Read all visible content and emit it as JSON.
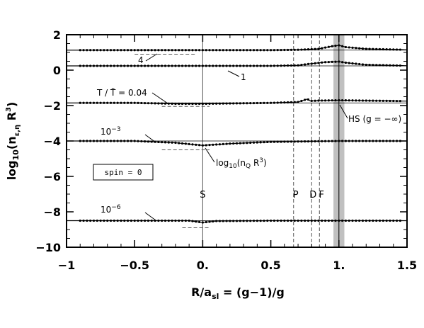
{
  "chart_data": {
    "type": "scatter",
    "title": "",
    "xlabel": "R/a_sl = (g−1)/g",
    "ylabel": "log10(n_{ε,η} R^3)",
    "xlim": [
      -1,
      1.5
    ],
    "ylim": [
      -10,
      2
    ],
    "x_ticks": [
      -1,
      -0.5,
      0,
      0.5,
      1,
      1.5
    ],
    "x_tick_labels": [
      "−1",
      "−0.5",
      "0.",
      "0.5",
      "1.",
      "1.5"
    ],
    "y_ticks": [
      2,
      0,
      -2,
      -4,
      -6,
      -8,
      -10
    ],
    "y_tick_labels": [
      "2",
      "0",
      "−2",
      "−4",
      "−6",
      "−8",
      "−10"
    ],
    "grid": false,
    "series": [
      {
        "name": "4",
        "baseline": 1.13,
        "points": [
          [
            -1.0,
            1.13
          ],
          [
            -0.5,
            1.13
          ],
          [
            0.0,
            1.13
          ],
          [
            0.5,
            1.13
          ],
          [
            0.7,
            1.15
          ],
          [
            0.85,
            1.2
          ],
          [
            0.95,
            1.35
          ],
          [
            1.0,
            1.4
          ],
          [
            1.05,
            1.3
          ],
          [
            1.2,
            1.2
          ],
          [
            1.5,
            1.15
          ]
        ]
      },
      {
        "name": "1",
        "baseline": 0.24,
        "points": [
          [
            -1.0,
            0.24
          ],
          [
            -0.5,
            0.24
          ],
          [
            0.0,
            0.24
          ],
          [
            0.5,
            0.24
          ],
          [
            0.7,
            0.27
          ],
          [
            0.78,
            0.35
          ],
          [
            0.9,
            0.45
          ],
          [
            1.0,
            0.48
          ],
          [
            1.05,
            0.42
          ],
          [
            1.2,
            0.3
          ],
          [
            1.5,
            0.25
          ]
        ]
      },
      {
        "name": "T/T̃ = 0.04",
        "baseline": -1.85,
        "points": [
          [
            -1.0,
            -1.85
          ],
          [
            -0.5,
            -1.85
          ],
          [
            -0.2,
            -1.9
          ],
          [
            0.0,
            -1.9
          ],
          [
            0.2,
            -1.88
          ],
          [
            0.5,
            -1.85
          ],
          [
            0.7,
            -1.8
          ],
          [
            0.74,
            -1.7
          ],
          [
            0.77,
            -1.63
          ],
          [
            0.79,
            -1.74
          ],
          [
            0.85,
            -1.72
          ],
          [
            1.0,
            -1.7
          ],
          [
            1.2,
            -1.72
          ],
          [
            1.5,
            -1.75
          ]
        ]
      },
      {
        "name": "10⁻³",
        "baseline": -4.0,
        "points": [
          [
            -1.0,
            -4.0
          ],
          [
            -0.5,
            -4.0
          ],
          [
            -0.2,
            -4.1
          ],
          [
            0.0,
            -4.25
          ],
          [
            0.2,
            -4.15
          ],
          [
            0.5,
            -4.05
          ],
          [
            0.8,
            -4.02
          ],
          [
            1.0,
            -4.0
          ],
          [
            1.5,
            -4.0
          ]
        ]
      },
      {
        "name": "10⁻⁶",
        "baseline": -8.5,
        "points": [
          [
            -1.0,
            -8.5
          ],
          [
            -0.5,
            -8.5
          ],
          [
            -0.1,
            -8.5
          ],
          [
            0.0,
            -8.6
          ],
          [
            0.1,
            -8.52
          ],
          [
            0.5,
            -8.5
          ],
          [
            1.0,
            -8.5
          ],
          [
            1.5,
            -8.5
          ]
        ]
      }
    ],
    "reference_dashes": [
      {
        "y": 0.9,
        "x_from": -0.5,
        "x_to": -0.05
      },
      {
        "y": -2.05,
        "x_from": -0.3,
        "x_to": 0.05
      },
      {
        "y": -4.5,
        "x_from": -0.3,
        "x_to": 0.05
      },
      {
        "y": -8.9,
        "x_from": -0.15,
        "x_to": 0.05
      }
    ],
    "vertical_markers": [
      {
        "label": "S",
        "x": 0.0,
        "style": "solid"
      },
      {
        "label": "P",
        "x": 0.667,
        "style": "dashed"
      },
      {
        "label": "D",
        "x": 0.8,
        "style": "dashed"
      },
      {
        "label": "F",
        "x": 0.857,
        "style": "dashed"
      }
    ],
    "shaded_band": {
      "x_from": 0.96,
      "x_to": 1.04,
      "center": 1.0,
      "color": "#c0c0c0"
    },
    "annotations": {
      "hs_label": "HS (g = −∞)",
      "nq_label": "log10(nQ R^3)",
      "spin_label": "spin = 0"
    }
  }
}
